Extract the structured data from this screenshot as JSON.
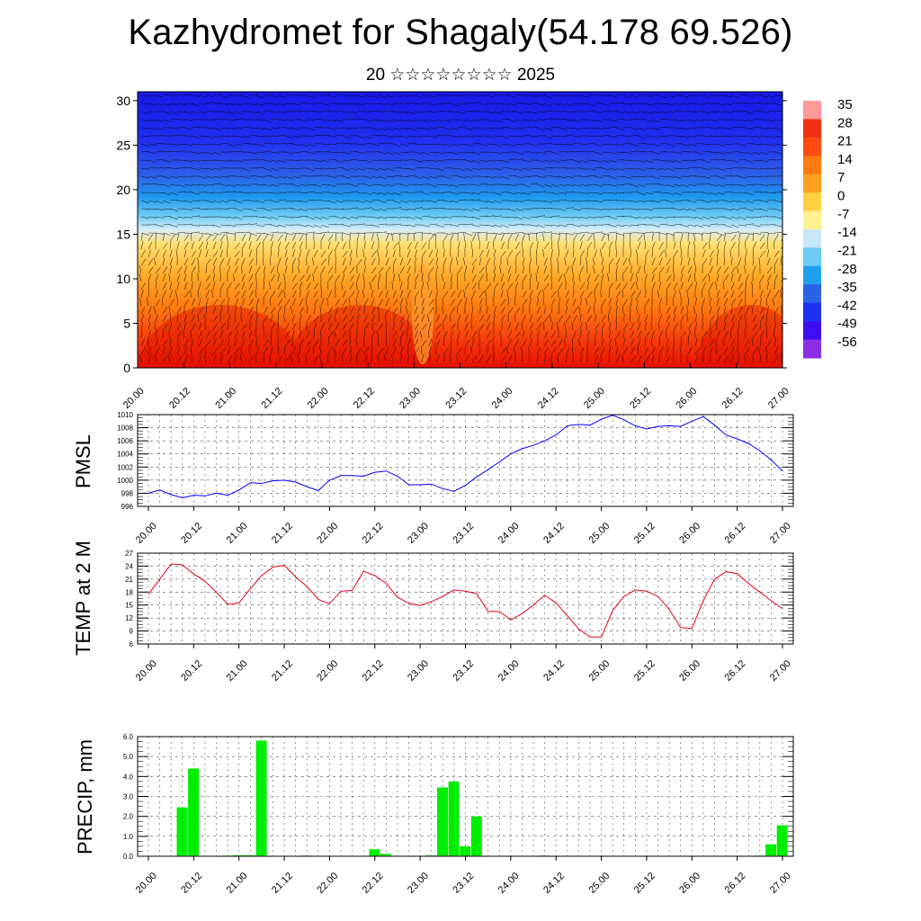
{
  "page": {
    "title": "Kazhydromet for Shagaly(54.178 69.526)",
    "subtitle": "20 ☆☆☆☆☆☆☆☆ 2025"
  },
  "chart_data": [
    {
      "type": "heatmap",
      "title": "",
      "xlabel": "",
      "ylabel": "",
      "x_tick_labels": [
        "20.00",
        "20.12",
        "21.00",
        "21.12",
        "22.00",
        "22.12",
        "23.00",
        "23.12",
        "24.00",
        "24.12",
        "25.00",
        "25.12",
        "26.00",
        "26.12",
        "27.00"
      ],
      "y_ticks": [
        0,
        5,
        10,
        15,
        20,
        25,
        30
      ],
      "ylim": [
        0,
        31
      ],
      "colorbar": {
        "labels": [
          "35",
          "28",
          "21",
          "14",
          "7",
          "0",
          "-7",
          "-14",
          "-21",
          "-28",
          "-35",
          "-42",
          "-49",
          "-56"
        ],
        "colors": [
          "#ff9a9a",
          "#f03010",
          "#ff4a10",
          "#ff7a10",
          "#ffa020",
          "#ffd040",
          "#fff090",
          "#c8e6f8",
          "#6ecbf5",
          "#1ea0ee",
          "#2a62e8",
          "#2030f0",
          "#3a10f0",
          "#8a2ee6"
        ]
      },
      "temperature_by_height": [
        {
          "height": 0,
          "value": 26
        },
        {
          "height": 5,
          "value": 14
        },
        {
          "height": 10,
          "value": 3
        },
        {
          "height": 15,
          "value": -13
        },
        {
          "height": 17,
          "value": -28
        },
        {
          "height": 20,
          "value": -45
        },
        {
          "height": 25,
          "value": -54
        },
        {
          "height": 30,
          "value": -56
        }
      ],
      "overlay": "wind barbs"
    },
    {
      "type": "line",
      "ylabel": "PMSL",
      "ylim": [
        996,
        1010
      ],
      "y_ticks": [
        996,
        998,
        1000,
        1002,
        1004,
        1006,
        1008,
        1010
      ],
      "x_tick_labels": [
        "20.00",
        "20.12",
        "21.00",
        "21.12",
        "22.00",
        "22.12",
        "23.00",
        "23.12",
        "24.00",
        "24.12",
        "25.00",
        "25.12",
        "26.00",
        "26.12",
        "27.00"
      ],
      "series": [
        {
          "color": "#0000ff",
          "values": [
            998.0,
            998.5,
            997.8,
            997.3,
            997.7,
            997.6,
            998.0,
            997.7,
            998.5,
            999.6,
            999.5,
            999.9,
            1000.0,
            999.7,
            999.0,
            998.4,
            1000.0,
            1000.7,
            1000.7,
            1000.6,
            1001.2,
            1001.4,
            1000.6,
            999.3,
            999.3,
            999.4,
            998.7,
            998.3,
            999.2,
            1000.5,
            1001.6,
            1002.8,
            1004.0,
            1004.8,
            1005.3,
            1006.0,
            1006.9,
            1008.3,
            1008.5,
            1008.4,
            1009.3,
            1009.9,
            1009.2,
            1008.3,
            1007.8,
            1008.2,
            1008.3,
            1008.2,
            1009.0,
            1009.7,
            1008.4,
            1006.9,
            1006.3,
            1005.6,
            1004.5,
            1003.1,
            1001.4
          ]
        }
      ]
    },
    {
      "type": "line",
      "ylabel": "TEMP at 2 M",
      "ylim": [
        6,
        27
      ],
      "y_ticks": [
        6,
        9,
        12,
        15,
        18,
        21,
        24,
        27
      ],
      "x_tick_labels": [
        "20.00",
        "20.12",
        "21.00",
        "21.12",
        "22.00",
        "22.12",
        "23.00",
        "23.12",
        "24.00",
        "24.12",
        "25.00",
        "25.12",
        "26.00",
        "26.12",
        "27.00"
      ],
      "series": [
        {
          "color": "#e8001a",
          "values": [
            17.5,
            21.0,
            24.5,
            24.3,
            22.2,
            20.5,
            18.0,
            15.2,
            15.5,
            18.8,
            21.8,
            23.8,
            24.2,
            21.5,
            19.3,
            16.3,
            15.3,
            18.2,
            18.4,
            22.8,
            21.8,
            20.0,
            16.8,
            15.4,
            14.9,
            15.8,
            17.0,
            18.5,
            18.2,
            17.6,
            13.5,
            13.5,
            11.6,
            13.0,
            15.0,
            17.3,
            15.5,
            12.5,
            9.5,
            7.6,
            7.6,
            13.8,
            17.0,
            18.5,
            18.2,
            17.0,
            14.0,
            9.8,
            9.6,
            16.0,
            21.0,
            22.7,
            22.3,
            20.0,
            18.0,
            16.0,
            14.2
          ]
        }
      ]
    },
    {
      "type": "bar",
      "ylabel": "PRECIP, mm",
      "ylim": [
        0,
        6
      ],
      "y_tick_labels": [
        "0.0",
        "1.0",
        "2.0",
        "3.0",
        "4.0",
        "5.0",
        "6.0"
      ],
      "x_tick_labels": [
        "20.00",
        "20.12",
        "21.00",
        "21.12",
        "22.00",
        "22.12",
        "23.00",
        "23.12",
        "24.00",
        "24.12",
        "25.00",
        "25.12",
        "26.00",
        "26.12",
        "27.00"
      ],
      "bar_color": "#00ee00",
      "values": [
        0,
        0,
        0,
        2.45,
        4.4,
        0,
        0,
        0.03,
        0.05,
        0.05,
        5.8,
        0,
        0,
        0,
        0.03,
        0,
        0,
        0,
        0,
        0,
        0.35,
        0.12,
        0,
        0,
        0,
        0.04,
        3.45,
        3.75,
        0.5,
        2.0,
        0,
        0,
        0,
        0,
        0,
        0.03,
        0,
        0,
        0,
        0,
        0,
        0,
        0,
        0,
        0,
        0,
        0,
        0,
        0,
        0,
        0,
        0,
        0,
        0,
        0.03,
        0.6,
        1.55
      ]
    }
  ]
}
